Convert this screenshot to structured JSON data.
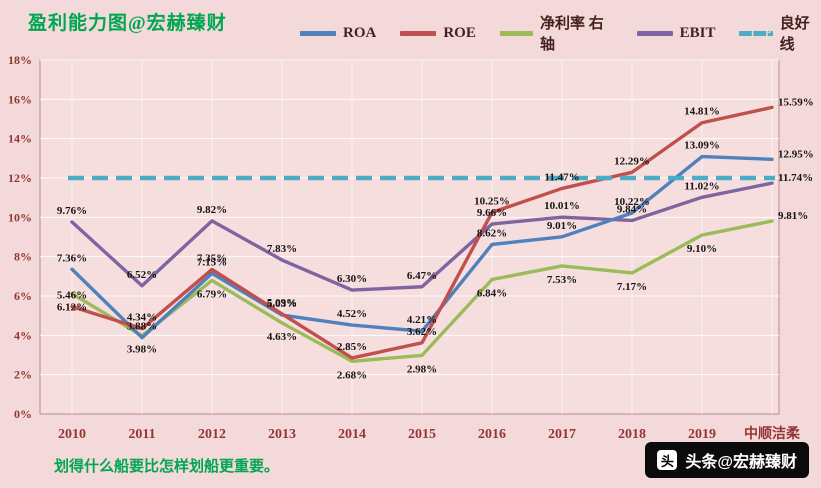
{
  "page": {
    "title": "盈利能力图@宏赫臻财",
    "footer_note": "划得什么船要比怎样划船更重要。",
    "badge": {
      "icon_char": "头",
      "label": "头条@宏赫臻财"
    }
  },
  "legend": {
    "items": [
      {
        "label": "ROA",
        "color": "#4f81bd",
        "dash": false
      },
      {
        "label": "ROE",
        "color": "#c0504d",
        "dash": false
      },
      {
        "label": "净利率 右轴",
        "color": "#9bbb59",
        "dash": false
      },
      {
        "label": "EBIT",
        "color": "#8064a2",
        "dash": false
      },
      {
        "label": "良好线",
        "color": "#4bacc6",
        "dash": true
      }
    ]
  },
  "chart_data": {
    "type": "line",
    "title": "盈利能力图@宏赫臻财",
    "categories": [
      "2010",
      "2011",
      "2012",
      "2013",
      "2014",
      "2015",
      "2016",
      "2017",
      "2018",
      "2019",
      "中顺洁柔"
    ],
    "series": [
      {
        "name": "ROA",
        "color": "#4f81bd",
        "values": [
          7.36,
          3.88,
          7.15,
          5.03,
          4.52,
          4.21,
          8.62,
          9.01,
          10.22,
          13.09,
          12.95
        ]
      },
      {
        "name": "ROE",
        "color": "#c0504d",
        "values": [
          5.46,
          4.34,
          7.35,
          5.09,
          2.85,
          3.62,
          10.25,
          11.47,
          12.29,
          14.81,
          15.59
        ]
      },
      {
        "name": "净利率 右轴",
        "color": "#9bbb59",
        "values": [
          6.12,
          3.98,
          6.79,
          4.63,
          2.68,
          2.98,
          6.84,
          7.53,
          7.17,
          9.1,
          9.81
        ]
      },
      {
        "name": "EBIT",
        "color": "#8064a2",
        "values": [
          9.76,
          6.52,
          9.82,
          7.83,
          6.3,
          6.47,
          9.66,
          10.01,
          9.84,
          11.02,
          11.74
        ]
      }
    ],
    "reference_line": {
      "label": "良好线",
      "value": 12,
      "color": "#4bacc6"
    },
    "ylim": [
      0,
      18
    ],
    "y_ticks": [
      "0%",
      "2%",
      "4%",
      "6%",
      "8%",
      "10%",
      "12%",
      "14%",
      "16%",
      "18%"
    ],
    "grid": true,
    "legend_position": "top",
    "xlabel": "",
    "ylabel": ""
  }
}
